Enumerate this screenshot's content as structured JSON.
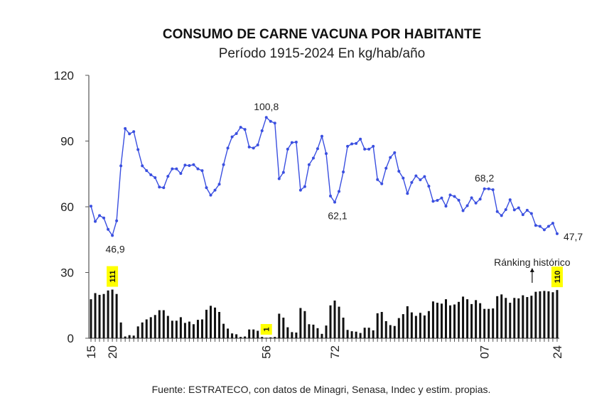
{
  "chart_data": {
    "type": "line",
    "title": "CONSUMO DE CARNE VACUNA POR HABITANTE",
    "subtitle": "Período 1915-2024 En kg/hab/año",
    "source": "Fuente: ESTRATECO, con datos de Minagri, Senasa, Indec y estim. propias.",
    "ylim": [
      0,
      120
    ],
    "yticks": [
      "0",
      "30",
      "60",
      "90",
      "120"
    ],
    "xticks": [
      {
        "year": 1915,
        "label": "15"
      },
      {
        "year": 1920,
        "label": "20"
      },
      {
        "year": 1956,
        "label": "56"
      },
      {
        "year": 1972,
        "label": "72"
      },
      {
        "year": 2007,
        "label": "07"
      },
      {
        "year": 2024,
        "label": "24"
      }
    ],
    "x_start": 1915,
    "series": [
      {
        "type": "line",
        "color": "#3a4fe0",
        "values": [
          60.3,
          53.3,
          56.0,
          54.9,
          49.7,
          46.9,
          53.6,
          78.7,
          95.7,
          93.3,
          94.3,
          86.1,
          78.7,
          76.5,
          74.6,
          73.3,
          69.0,
          68.7,
          73.9,
          77.3,
          77.3,
          75.2,
          79.0,
          78.8,
          79.2,
          77.3,
          76.5,
          68.7,
          65.3,
          67.6,
          70.3,
          79.2,
          86.8,
          91.9,
          93.4,
          96.3,
          95.3,
          87.3,
          86.8,
          88.2,
          94.7,
          100.8,
          99.0,
          98.2,
          72.8,
          75.7,
          86.3,
          89.3,
          89.5,
          67.6,
          69.2,
          79.2,
          82.2,
          86.5,
          92.2,
          84.3,
          64.9,
          62.1,
          67.0,
          75.9,
          87.6,
          88.7,
          88.9,
          90.9,
          86.3,
          86.3,
          87.6,
          72.4,
          70.5,
          77.6,
          82.5,
          84.7,
          76.2,
          73.1,
          66.1,
          71.1,
          74.1,
          72.3,
          73.8,
          69.4,
          62.5,
          62.9,
          64.0,
          60.3,
          65.4,
          64.7,
          63.0,
          58.2,
          60.5,
          64.1,
          61.7,
          63.5,
          68.2,
          68.2,
          67.8,
          57.8,
          56.0,
          58.7,
          63.2,
          58.6,
          59.5,
          56.4,
          58.4,
          56.9,
          51.5,
          51.1,
          49.5,
          51.1,
          52.5,
          47.7
        ]
      },
      {
        "type": "bar",
        "name": "Ránking histórico",
        "color": "#111111",
        "scale_divisor": 5,
        "values": [
          89,
          103,
          99,
          101,
          109,
          111,
          101,
          36,
          4,
          7,
          6,
          27,
          36,
          43,
          48,
          53,
          64,
          64,
          51,
          40,
          40,
          48,
          35,
          38,
          32,
          42,
          43,
          65,
          74,
          70,
          60,
          33,
          22,
          11,
          9,
          3,
          4,
          20,
          20,
          17,
          3,
          1,
          2,
          3,
          56,
          47,
          25,
          14,
          13,
          69,
          62,
          32,
          31,
          23,
          10,
          29,
          75,
          86,
          72,
          47,
          19,
          16,
          15,
          12,
          24,
          24,
          18,
          57,
          60,
          39,
          30,
          28,
          46,
          55,
          73,
          59,
          51,
          58,
          52,
          62,
          84,
          81,
          79,
          89,
          75,
          77,
          83,
          95,
          89,
          78,
          87,
          80,
          67,
          67,
          68,
          96,
          100,
          92,
          81,
          92,
          91,
          98,
          94,
          97,
          106,
          107,
          108,
          107,
          105,
          110
        ]
      }
    ],
    "data_labels": [
      {
        "year": 1920,
        "text": "46,9",
        "pos": "below"
      },
      {
        "year": 1956,
        "text": "100,8",
        "pos": "above"
      },
      {
        "year": 1972,
        "text": "62,1",
        "pos": "below"
      },
      {
        "year": 2007,
        "text": "68,2",
        "pos": "above"
      },
      {
        "year": 2024,
        "text": "47,7",
        "pos": "right"
      }
    ],
    "rank_labels": [
      {
        "year": 1920,
        "text": "111"
      },
      {
        "year": 1956,
        "text": "1"
      },
      {
        "year": 2024,
        "text": "110"
      }
    ],
    "rank_highlight_color": "#ffff00",
    "annotation": {
      "text": "Ránking histórico",
      "year": 2018
    }
  }
}
